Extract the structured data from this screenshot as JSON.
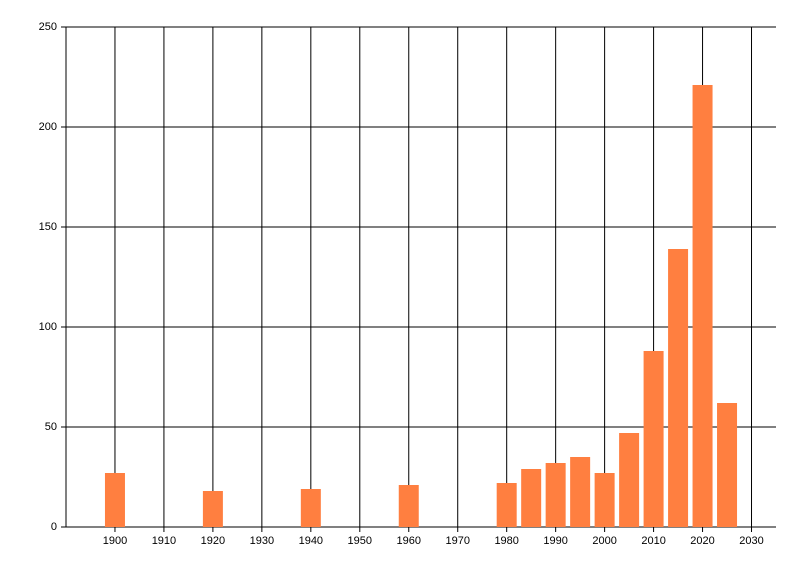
{
  "chart_data": {
    "type": "bar",
    "x": [
      1900,
      1920,
      1940,
      1960,
      1980,
      1985,
      1990,
      1995,
      2000,
      2005,
      2010,
      2015,
      2020,
      2025
    ],
    "values": [
      27,
      18,
      19,
      21,
      22,
      29,
      32,
      35,
      27,
      47,
      88,
      139,
      221,
      62
    ],
    "color": "#ff7f40",
    "xlim": [
      1890,
      2035
    ],
    "xticks": [
      1900,
      1910,
      1920,
      1930,
      1940,
      1950,
      1960,
      1970,
      1980,
      1990,
      2000,
      2010,
      2020,
      2030
    ],
    "ylim": [
      0,
      250
    ],
    "yticks": [
      0,
      50,
      100,
      150,
      200,
      250
    ],
    "grid": true
  }
}
